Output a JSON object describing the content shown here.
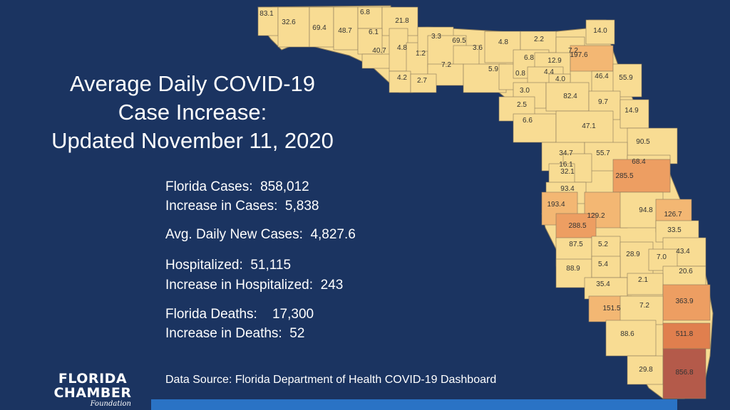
{
  "title": {
    "line1": "Average Daily COVID-19",
    "line2": "Case Increase:",
    "line3": "Updated November 11, 2020"
  },
  "stats": [
    {
      "label": "Florida Cases:",
      "value": "858,012"
    },
    {
      "label": "Increase in Cases:",
      "value": "5,838"
    },
    {
      "label": "Avg. Daily New Cases:",
      "value": "4,827.6"
    },
    {
      "label": "Hospitalized:",
      "value": "51,115"
    },
    {
      "label": "Increase in Hospitalized:",
      "value": "243"
    },
    {
      "label": "Florida Deaths:",
      "value": "17,300"
    },
    {
      "label": "Increase in Deaths:",
      "value": "52"
    }
  ],
  "source": "Data Source:  Florida Department of Health COVID-19 Dashboard",
  "logo": {
    "line1": "FLORIDA",
    "line2": "CHAMBER",
    "line3": "Foundation"
  },
  "colors": {
    "background": "#1b3461",
    "accent_bar": "#2a73c5",
    "low": "#f8dc93",
    "mid": "#f3b773",
    "high": "#ed9e62",
    "higher": "#e07f4e",
    "highest": "#b45a4a"
  },
  "county_values": [
    "83.1",
    "32.6",
    "69.4",
    "48.7",
    "6.8",
    "21.8",
    "6.1",
    "40.7",
    "4.8",
    "1.2",
    "3.3",
    "69.5",
    "3.6",
    "4.8",
    "2.2",
    "7.2",
    "14.0",
    "7.2",
    "4.2",
    "2.7",
    "5.9",
    "0.8",
    "6.8",
    "12.9",
    "197.6",
    "4.4",
    "4.0",
    "46.4",
    "55.9",
    "3.0",
    "82.4",
    "9.7",
    "14.9",
    "2.5",
    "6.6",
    "47.1",
    "90.5",
    "34.7",
    "55.7",
    "68.4",
    "16.1",
    "32.1",
    "285.5",
    "93.4",
    "193.4",
    "129.2",
    "94.8",
    "126.7",
    "288.5",
    "33.5",
    "87.5",
    "5.2",
    "28.9",
    "43.4",
    "7.0",
    "88.9",
    "5.4",
    "20.6",
    "35.4",
    "2.1",
    "363.9",
    "151.5",
    "7.2",
    "88.6",
    "511.8",
    "29.8",
    "856.8"
  ]
}
